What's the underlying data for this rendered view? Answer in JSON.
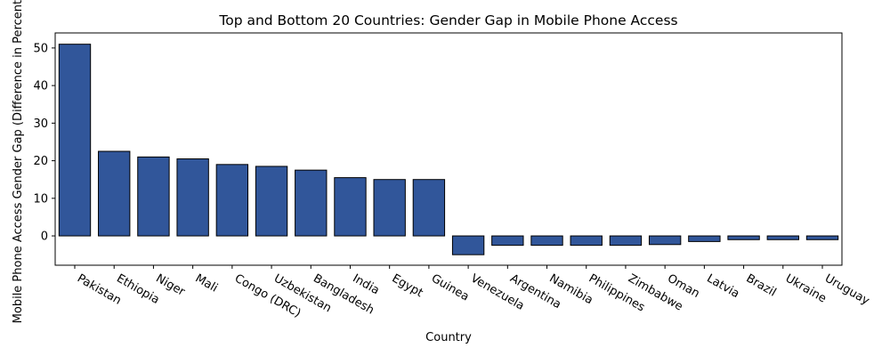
{
  "chart_data": {
    "type": "bar",
    "title": "Top and Bottom 20 Countries: Gender Gap in Mobile Phone Access",
    "xlabel": "Country",
    "ylabel": "Mobile Phone Access Gender Gap (Difference in Percentage)",
    "categories": [
      "Pakistan",
      "Ethiopia",
      "Niger",
      "Mali",
      "Congo (DRC)",
      "Uzbekistan",
      "Bangladesh",
      "India",
      "Egypt",
      "Guinea",
      "Venezuela",
      "Argentina",
      "Namibia",
      "Philippines",
      "Zimbabwe",
      "Oman",
      "Latvia",
      "Brazil",
      "Ukraine",
      "Uruguay"
    ],
    "values": [
      51,
      22.5,
      21,
      20.5,
      19,
      18.5,
      17.5,
      15.5,
      15,
      15,
      -5,
      -2.5,
      -2.5,
      -2.5,
      -2.5,
      -2.3,
      -1.5,
      -1,
      -1,
      -1
    ],
    "ylim": [
      -7.8,
      54
    ],
    "yticks": [
      0,
      10,
      20,
      30,
      40,
      50
    ],
    "grid": false,
    "colors": {
      "bar": "#31569a",
      "edge": "#000000"
    }
  }
}
